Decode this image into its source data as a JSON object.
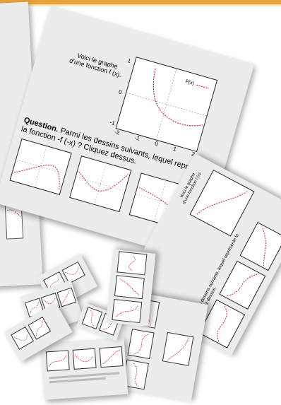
{
  "main_card": {
    "caption_line1": "Voici le graphe",
    "caption_line2": "d'une fonction f (x).",
    "legend": "F(x)",
    "question_bold": "Question.",
    "question_text": " Parmi les dessins suivants, lequel représente la fonction -f (-x) ? Cliquez dessus.",
    "axis_ticks_x": [
      "-2",
      "-1",
      "0",
      "1",
      "2"
    ],
    "axis_ticks_y": [
      "1",
      "0",
      "-1"
    ]
  },
  "card_mid": {
    "caption_line1": "Voici le graphe",
    "caption_line2": "d'une fonction f (x).",
    "question_text": "ion. Parmi les dessins suivants, lequel représente la",
    "question_text2": "-f (-x) ? Cliquez dessus."
  },
  "colors": {
    "accent_bar": "#e6a33a",
    "curve": "#e02020",
    "card_bg": "#ececec"
  }
}
